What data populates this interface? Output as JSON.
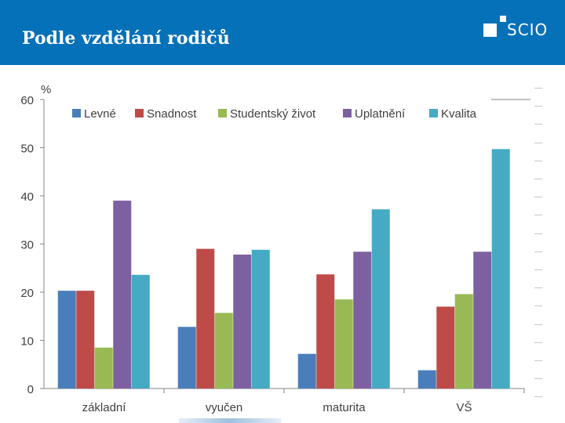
{
  "slide": {
    "title": "Podle vzdělání rodičů",
    "logo_text": "SCIO"
  },
  "colors": {
    "header_bg": "#0571b9",
    "series": [
      "#4a7ebb",
      "#be4b48",
      "#98b954",
      "#7d60a0",
      "#46aac4"
    ]
  },
  "chart_data": {
    "type": "bar",
    "title": "",
    "xlabel": "",
    "ylabel": "%",
    "ylim": [
      0,
      60
    ],
    "yticks": [
      0,
      10,
      20,
      30,
      40,
      50,
      60
    ],
    "categories": [
      "základní",
      "vyučen",
      "maturita",
      "VŠ"
    ],
    "legend_position": "top",
    "series": [
      {
        "name": "Levné",
        "values": [
          20.3,
          12.8,
          7.2,
          3.8
        ]
      },
      {
        "name": "Snadnost",
        "values": [
          20.3,
          29.0,
          23.7,
          17.0
        ]
      },
      {
        "name": "Studentský život",
        "values": [
          8.5,
          15.7,
          18.5,
          19.6
        ]
      },
      {
        "name": "Uplatnění",
        "values": [
          39.0,
          27.8,
          28.4,
          28.4
        ]
      },
      {
        "name": "Kvalita",
        "values": [
          23.6,
          28.8,
          37.2,
          49.7
        ]
      }
    ]
  }
}
